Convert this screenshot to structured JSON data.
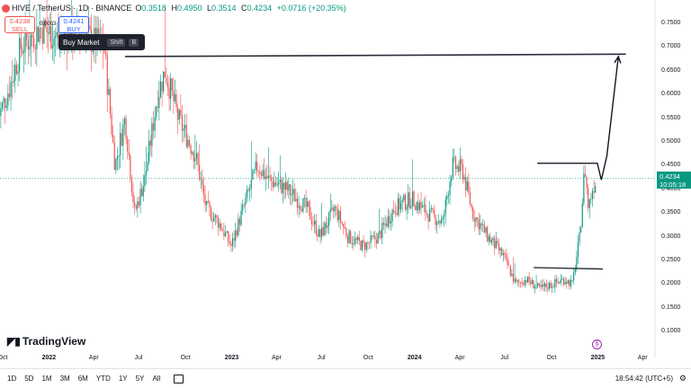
{
  "header": {
    "symbol_title": "HIVE / TetherUS · 1D · BINANCE",
    "o_label": "O",
    "o_value": "0.3518",
    "h_label": "H",
    "h_value": "0.4950",
    "l_label": "L",
    "l_value": "0.3514",
    "c_label": "C",
    "c_value": "0.4234",
    "change": "+0.0716 (+20.35%)"
  },
  "trade": {
    "sell_price": "0.4238",
    "sell_label": "SELL",
    "buy_price": "0.4241",
    "buy_label": "BUY",
    "spread": "0.0003",
    "buy_market_label": "Buy Market",
    "shortcut_key1": "Shift",
    "shortcut_key2": "B"
  },
  "last_price": {
    "price": "0.4234",
    "countdown": "10:05:18"
  },
  "logo": {
    "text": "TradingView",
    "mark_icon": "tradingview-logo-icon"
  },
  "bottom_bar": {
    "ranges": [
      "1D",
      "5D",
      "1M",
      "3M",
      "6M",
      "YTD",
      "1Y",
      "5Y",
      "All"
    ],
    "clock": "18:54:42 (UTC+5)"
  },
  "colors": {
    "up": "#089981",
    "down": "#ef5350",
    "last_price_line": "#089981",
    "trendline": "#2a2e39",
    "arrow": "#131722",
    "accent_buy": "#2962ff"
  },
  "chart_data": {
    "type": "candlestick",
    "y_ticks": [
      "0.7500",
      "0.7000",
      "0.6500",
      "0.6000",
      "0.5500",
      "0.5000",
      "0.4500",
      "0.4000",
      "0.3500",
      "0.3000",
      "0.2500",
      "0.2000",
      "0.1500",
      "0.1000"
    ],
    "x_ticks": [
      "Oct",
      "2022",
      "Apr",
      "Jul",
      "Oct",
      "2023",
      "Apr",
      "Jul",
      "Oct",
      "2024",
      "Apr",
      "Jul",
      "Oct",
      "2025",
      "Apr"
    ],
    "ylim": [
      0.07,
      0.79
    ],
    "x_range": [
      "2021-09",
      "2025-05"
    ],
    "last_close": 0.4234,
    "price_path": [
      {
        "x": "2021-09-20",
        "y": 0.55
      },
      {
        "x": "2021-10-15",
        "y": 0.62
      },
      {
        "x": "2021-11-05",
        "y": 0.7
      },
      {
        "x": "2021-12-15",
        "y": 0.74
      },
      {
        "x": "2022-01-15",
        "y": 0.72
      },
      {
        "x": "2022-03-01",
        "y": 0.73
      },
      {
        "x": "2022-04-20",
        "y": 0.7
      },
      {
        "x": "2022-05-12",
        "y": 0.45
      },
      {
        "x": "2022-06-01",
        "y": 0.55
      },
      {
        "x": "2022-06-20",
        "y": 0.35
      },
      {
        "x": "2022-07-10",
        "y": 0.42
      },
      {
        "x": "2022-08-05",
        "y": 0.6
      },
      {
        "x": "2022-08-20",
        "y": 0.65
      },
      {
        "x": "2022-09-15",
        "y": 0.55
      },
      {
        "x": "2022-10-20",
        "y": 0.47
      },
      {
        "x": "2022-11-10",
        "y": 0.36
      },
      {
        "x": "2022-12-05",
        "y": 0.33
      },
      {
        "x": "2022-12-30",
        "y": 0.28
      },
      {
        "x": "2023-01-20",
        "y": 0.35
      },
      {
        "x": "2023-02-20",
        "y": 0.45
      },
      {
        "x": "2023-03-15",
        "y": 0.42
      },
      {
        "x": "2023-04-20",
        "y": 0.4
      },
      {
        "x": "2023-05-30",
        "y": 0.36
      },
      {
        "x": "2023-06-25",
        "y": 0.3
      },
      {
        "x": "2023-07-25",
        "y": 0.36
      },
      {
        "x": "2023-08-20",
        "y": 0.3
      },
      {
        "x": "2023-09-20",
        "y": 0.28
      },
      {
        "x": "2023-10-20",
        "y": 0.3
      },
      {
        "x": "2023-11-20",
        "y": 0.36
      },
      {
        "x": "2023-12-25",
        "y": 0.38
      },
      {
        "x": "2024-01-25",
        "y": 0.35
      },
      {
        "x": "2024-02-25",
        "y": 0.33
      },
      {
        "x": "2024-03-15",
        "y": 0.45
      },
      {
        "x": "2024-04-05",
        "y": 0.44
      },
      {
        "x": "2024-04-25",
        "y": 0.35
      },
      {
        "x": "2024-05-25",
        "y": 0.3
      },
      {
        "x": "2024-06-25",
        "y": 0.26
      },
      {
        "x": "2024-07-20",
        "y": 0.2
      },
      {
        "x": "2024-08-10",
        "y": 0.21
      },
      {
        "x": "2024-09-05",
        "y": 0.19
      },
      {
        "x": "2024-10-01",
        "y": 0.2
      },
      {
        "x": "2024-10-25",
        "y": 0.21
      },
      {
        "x": "2024-11-10",
        "y": 0.2
      },
      {
        "x": "2024-11-25",
        "y": 0.3
      },
      {
        "x": "2024-12-05",
        "y": 0.45
      },
      {
        "x": "2024-12-12",
        "y": 0.36
      },
      {
        "x": "2024-12-20",
        "y": 0.4
      },
      {
        "x": "2024-12-28",
        "y": 0.4234
      }
    ],
    "drawings": {
      "resistance_line": {
        "x1": "2022-06-01",
        "y1": 0.68,
        "x2": "2025-02-25",
        "y2": 0.685
      },
      "upper_box_line": {
        "x1": "2024-09-01",
        "y1": 0.455,
        "x2": "2024-12-31",
        "y2": 0.455
      },
      "lower_box_line": {
        "x1": "2024-08-25",
        "y1": 0.235,
        "x2": "2025-01-10",
        "y2": 0.232
      },
      "projection_path": [
        {
          "x": "2024-12-30",
          "y": 0.455
        },
        {
          "x": "2025-01-07",
          "y": 0.42
        },
        {
          "x": "2025-01-18",
          "y": 0.47
        },
        {
          "x": "2025-02-10",
          "y": 0.68
        }
      ]
    }
  }
}
